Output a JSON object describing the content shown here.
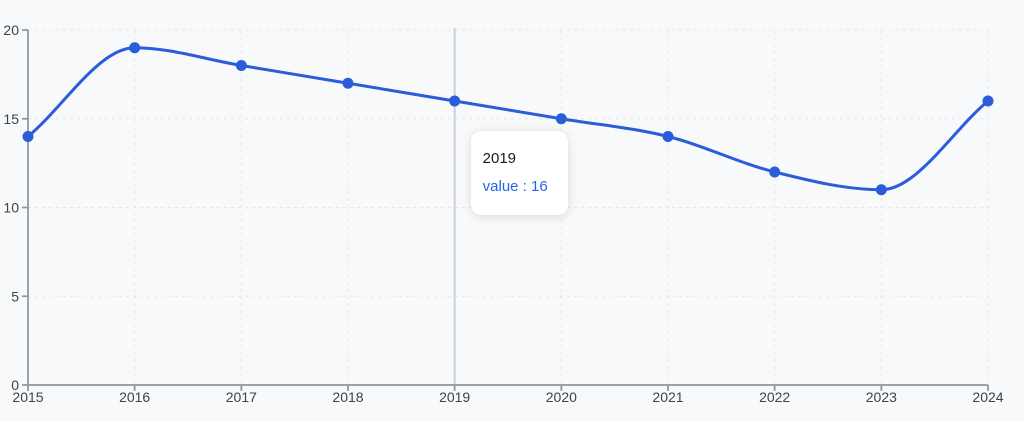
{
  "chart_data": {
    "type": "line",
    "title": "",
    "xlabel": "",
    "ylabel": "",
    "x_labels": [
      "2015",
      "2016",
      "2017",
      "2018",
      "2019",
      "2020",
      "2021",
      "2022",
      "2023",
      "2024"
    ],
    "series": [
      {
        "name": "value",
        "values": [
          14,
          19,
          18,
          17,
          16,
          15,
          14,
          12,
          11,
          16
        ]
      }
    ],
    "ylim": [
      0,
      20
    ],
    "y_ticks": [
      0,
      5,
      10,
      15,
      20
    ],
    "y_tick_labels": [
      "0",
      "5",
      "10",
      "15",
      "20"
    ],
    "grid": "dashed-both-axes",
    "legend": "none",
    "curve": "smooth-monotone",
    "active_point": {
      "x_label": "2019",
      "series": "value",
      "value": 16
    }
  },
  "tooltip": {
    "title": "2019",
    "series_label": "value",
    "separator": " : ",
    "value": "16"
  },
  "colors": {
    "background": "#f8f9fa",
    "line": "#2b5cd9",
    "dot": "#2b5cd9",
    "tooltip_title": "#17191c",
    "tooltip_value": "#2563eb",
    "grid": "#e4e6e9",
    "axis": "#8f9499",
    "tick_label": "#3e4347",
    "crosshair": "#cdd0d4"
  }
}
